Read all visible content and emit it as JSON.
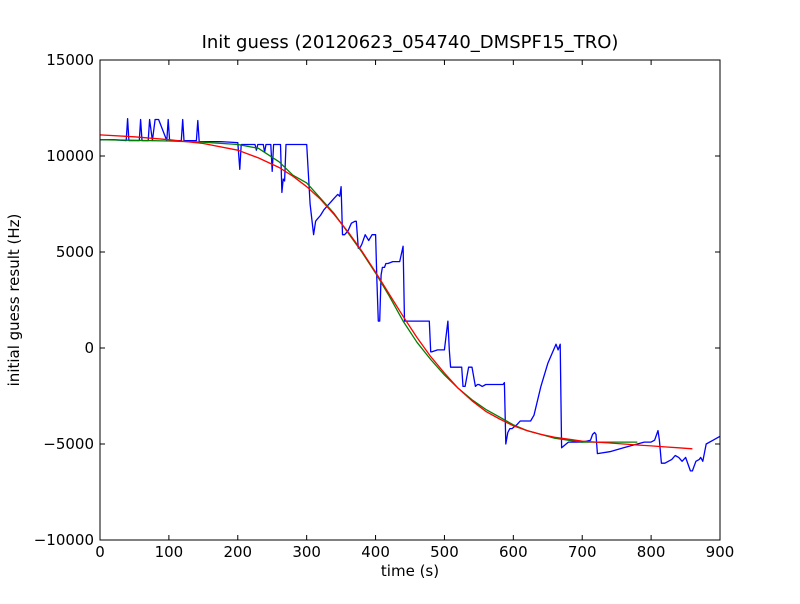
{
  "chart_data": {
    "type": "line",
    "title": "Init guess (20120623_054740_DMSPF15_TRO)",
    "xlabel": "time (s)",
    "ylabel": "initial guess result (Hz)",
    "xlim": [
      0,
      900
    ],
    "ylim": [
      -10000,
      15000
    ],
    "xticks": [
      0,
      100,
      200,
      300,
      400,
      500,
      600,
      700,
      800,
      900
    ],
    "xtick_labels": [
      "0",
      "100",
      "200",
      "300",
      "400",
      "500",
      "600",
      "700",
      "800",
      "900"
    ],
    "yticks": [
      -10000,
      -5000,
      0,
      5000,
      10000,
      15000
    ],
    "ytick_labels": [
      "−10000",
      "−5000",
      "0",
      "5000",
      "10000",
      "15000"
    ],
    "grid": false,
    "legend": false,
    "series": [
      {
        "color": "#0000ff",
        "x": [
          0,
          20,
          38,
          40,
          42,
          57,
          59,
          61,
          70,
          72,
          76,
          80,
          85,
          97,
          99,
          101,
          118,
          120,
          122,
          140,
          142,
          144,
          175,
          200,
          203,
          205,
          207,
          225,
          227,
          229,
          237,
          239,
          241,
          248,
          250,
          252,
          262,
          264,
          266,
          268,
          270,
          290,
          300,
          305,
          310,
          313,
          315,
          320,
          325,
          330,
          335,
          340,
          345,
          348,
          350,
          352,
          355,
          360,
          365,
          370,
          372,
          375,
          377,
          380,
          385,
          390,
          395,
          400,
          402,
          404,
          406,
          408,
          410,
          413,
          415,
          418,
          425,
          435,
          440,
          442,
          444,
          460,
          475,
          478,
          480,
          482,
          490,
          500,
          505,
          507,
          509,
          512,
          520,
          525,
          527,
          530,
          535,
          540,
          545,
          548,
          550,
          555,
          560,
          565,
          570,
          575,
          580,
          585,
          587,
          589,
          592,
          595,
          598,
          605,
          610,
          615,
          620,
          625,
          630,
          640,
          650,
          662,
          665,
          668,
          670,
          680,
          690,
          700,
          712,
          715,
          718,
          720,
          722,
          740,
          750,
          760,
          770,
          780,
          790,
          800,
          805,
          810,
          812,
          815,
          820,
          830,
          835,
          840,
          845,
          850,
          857,
          860,
          865,
          870,
          872,
          875,
          880,
          890,
          900
        ],
        "values": [
          10850,
          10850,
          10800,
          11950,
          10800,
          10800,
          11900,
          10800,
          10800,
          11900,
          10800,
          11900,
          11900,
          10800,
          11900,
          10800,
          10800,
          11900,
          10800,
          10800,
          11850,
          10750,
          10750,
          10700,
          9300,
          10600,
          10600,
          10600,
          10300,
          10600,
          10600,
          10200,
          10600,
          10600,
          9200,
          10600,
          10600,
          8100,
          8800,
          8700,
          10600,
          10600,
          10600,
          7500,
          5900,
          6600,
          6700,
          6900,
          7200,
          7400,
          7600,
          7800,
          8000,
          7900,
          8400,
          5900,
          5900,
          6100,
          6500,
          6600,
          6600,
          5200,
          5200,
          5400,
          5900,
          5600,
          5900,
          5900,
          3500,
          1400,
          1400,
          3800,
          4200,
          4200,
          4400,
          4400,
          4500,
          4500,
          5300,
          1400,
          1400,
          1400,
          1400,
          1400,
          -200,
          -200,
          -100,
          -100,
          1400,
          -100,
          -1000,
          -1000,
          -1000,
          -1000,
          -2000,
          -2000,
          -1000,
          -1000,
          -2000,
          -1900,
          -1900,
          -2000,
          -1900,
          -1900,
          -1900,
          -1900,
          -1900,
          -1900,
          -1800,
          -5000,
          -4400,
          -4200,
          -4200,
          -4000,
          -3800,
          -3800,
          -3800,
          -3800,
          -3500,
          -2000,
          -800,
          200,
          -100,
          200,
          -5200,
          -4900,
          -4900,
          -4900,
          -4800,
          -4500,
          -4400,
          -4500,
          -5500,
          -5400,
          -5300,
          -5200,
          -5100,
          -5000,
          -4900,
          -4900,
          -4800,
          -4300,
          -4800,
          -6000,
          -6000,
          -5800,
          -5600,
          -5700,
          -5900,
          -5700,
          -6400,
          -6400,
          -5900,
          -5800,
          -5700,
          -5900,
          -5000,
          -4800,
          -4600
        ]
      },
      {
        "color": "#008000",
        "x": [
          0,
          50,
          100,
          150,
          200,
          230,
          260,
          280,
          300,
          320,
          340,
          360,
          380,
          400,
          420,
          440,
          460,
          480,
          500,
          520,
          540,
          560,
          580,
          600,
          620,
          640,
          660,
          680,
          700,
          720,
          740,
          760,
          780
        ],
        "values": [
          10850,
          10820,
          10780,
          10720,
          10600,
          10400,
          9700,
          9000,
          8600,
          7800,
          7000,
          6000,
          5000,
          3900,
          2700,
          1400,
          300,
          -600,
          -1400,
          -2100,
          -2700,
          -3200,
          -3600,
          -4000,
          -4300,
          -4500,
          -4700,
          -4800,
          -4900,
          -4900,
          -4900,
          -4900,
          -4900
        ]
      },
      {
        "color": "#ff0000",
        "x": [
          0,
          50,
          100,
          150,
          200,
          230,
          260,
          280,
          300,
          320,
          340,
          360,
          380,
          400,
          420,
          440,
          460,
          480,
          500,
          520,
          540,
          560,
          580,
          600,
          620,
          640,
          660,
          680,
          700,
          720,
          740,
          760,
          780,
          800,
          820,
          840,
          860
        ],
        "values": [
          11100,
          11000,
          10850,
          10650,
          10300,
          9900,
          9400,
          8950,
          8400,
          7750,
          6950,
          6050,
          5050,
          3950,
          2800,
          1650,
          550,
          -450,
          -1300,
          -2100,
          -2750,
          -3300,
          -3700,
          -4050,
          -4300,
          -4500,
          -4650,
          -4750,
          -4850,
          -4900,
          -4950,
          -5000,
          -5050,
          -5100,
          -5150,
          -5200,
          -5250
        ]
      }
    ]
  }
}
